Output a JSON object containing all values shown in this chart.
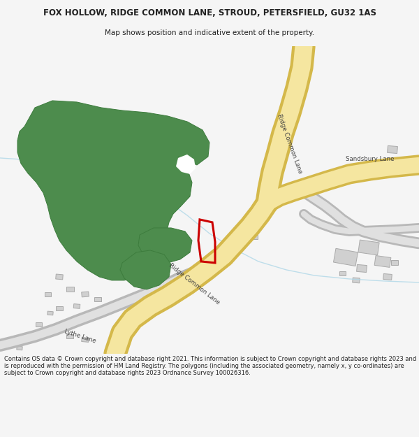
{
  "title_line1": "FOX HOLLOW, RIDGE COMMON LANE, STROUD, PETERSFIELD, GU32 1AS",
  "title_line2": "Map shows position and indicative extent of the property.",
  "footer_text": "Contains OS data © Crown copyright and database right 2021. This information is subject to Crown copyright and database rights 2023 and is reproduced with the permission of HM Land Registry. The polygons (including the associated geometry, namely x, y co-ordinates) are subject to Crown copyright and database rights 2023 Ordnance Survey 100026316.",
  "bg_color": "#f5f5f5",
  "map_bg_color": "#ffffff",
  "road_yellow_fill": "#f5e6a0",
  "road_yellow_border": "#d4b84a",
  "road_gray_fill": "#e0e0e0",
  "road_gray_border": "#b8b8b8",
  "green_fill": "#4d8c4d",
  "green_border": "#3d7c3d",
  "building_fill": "#d0d0d0",
  "building_border": "#aaaaaa",
  "plot_border": "#cc0000",
  "stream_color": "#b0d8e8",
  "text_dark": "#222222",
  "text_road": "#444444"
}
